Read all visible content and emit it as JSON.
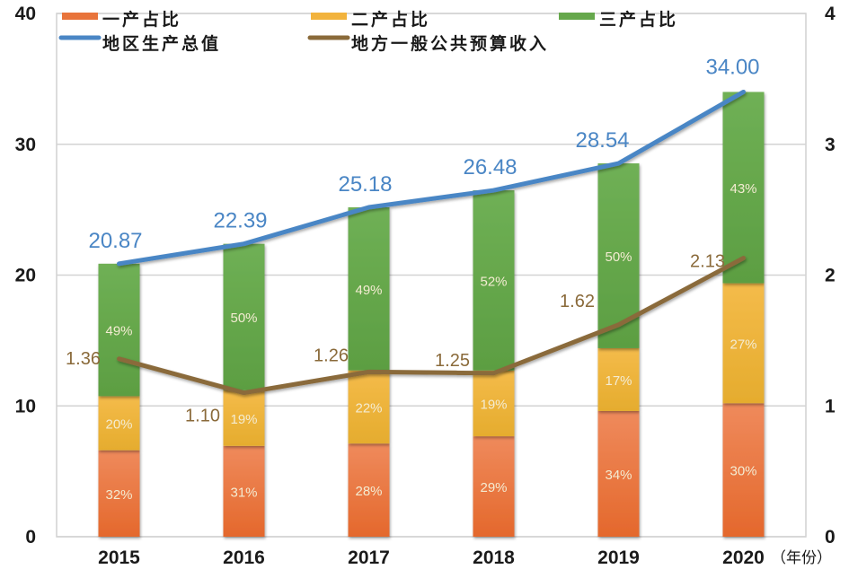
{
  "chart_data": {
    "type": "bar",
    "subtype": "stacked-bar-with-lines",
    "title": "",
    "categories": [
      "2015",
      "2016",
      "2017",
      "2018",
      "2019",
      "2020"
    ],
    "xlabel_suffix": "（年份）",
    "y_left": {
      "ylim": [
        0,
        40
      ],
      "ticks": [
        "0",
        "10",
        "20",
        "30",
        "40"
      ]
    },
    "y_right": {
      "ylim": [
        0,
        4
      ],
      "ticks": [
        "0",
        "1",
        "2",
        "3",
        "4"
      ]
    },
    "grid": true,
    "legend_position": "top",
    "bar_series": [
      {
        "name": "一产占比",
        "color": "#e8743b",
        "percents": [
          "32%",
          "31%",
          "28%",
          "29%",
          "34%",
          "30%"
        ],
        "shares": [
          0.32,
          0.31,
          0.28,
          0.29,
          0.34,
          0.3
        ]
      },
      {
        "name": "二产占比",
        "color": "#f2b33d",
        "percents": [
          "20%",
          "19%",
          "22%",
          "19%",
          "17%",
          "27%"
        ],
        "shares": [
          0.2,
          0.19,
          0.22,
          0.19,
          0.17,
          0.27
        ]
      },
      {
        "name": "三产占比",
        "color": "#66a84c",
        "percents": [
          "49%",
          "50%",
          "49%",
          "52%",
          "50%",
          "43%"
        ],
        "shares": [
          0.49,
          0.5,
          0.49,
          0.52,
          0.5,
          0.43
        ]
      }
    ],
    "line_series": [
      {
        "name": "地区生产总值",
        "axis": "left",
        "color": "#4a86c5",
        "values": [
          20.87,
          22.39,
          25.18,
          26.48,
          28.54,
          34.0
        ],
        "labels": [
          "20.87",
          "22.39",
          "25.18",
          "26.48",
          "28.54",
          "34.00"
        ]
      },
      {
        "name": "地方一般公共预算收入",
        "axis": "right",
        "color": "#8a6a3a",
        "values": [
          1.36,
          1.1,
          1.26,
          1.25,
          1.62,
          2.13
        ],
        "labels": [
          "1.36",
          "1.10",
          "1.26",
          "1.25",
          "1.62",
          "2.13"
        ]
      }
    ]
  }
}
